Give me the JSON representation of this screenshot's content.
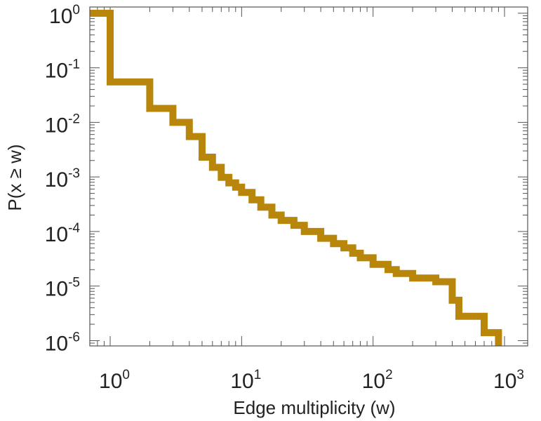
{
  "chart_data": {
    "type": "line",
    "xlabel": "Edge multiplicity (w)",
    "ylabel": "P(x ≥ w)",
    "xscale": "log",
    "yscale": "log",
    "xlim": [
      0.7,
      1500
    ],
    "ylim": [
      8e-07,
      1.3
    ],
    "x_ticks": [
      {
        "base": "10",
        "exp": "0",
        "value": 1
      },
      {
        "base": "10",
        "exp": "1",
        "value": 10
      },
      {
        "base": "10",
        "exp": "2",
        "value": 100
      },
      {
        "base": "10",
        "exp": "3",
        "value": 1000
      }
    ],
    "y_ticks": [
      {
        "base": "10",
        "exp": "0",
        "value": 1
      },
      {
        "base": "10",
        "exp": "-1",
        "value": 0.1
      },
      {
        "base": "10",
        "exp": "-2",
        "value": 0.01
      },
      {
        "base": "10",
        "exp": "-3",
        "value": 0.001
      },
      {
        "base": "10",
        "exp": "-4",
        "value": 0.0001
      },
      {
        "base": "10",
        "exp": "-5",
        "value": 1e-05
      },
      {
        "base": "10",
        "exp": "-6",
        "value": 1e-06
      }
    ],
    "grid": false,
    "series": [
      {
        "step": "post",
        "color": "#b8860b",
        "x": [
          0.7,
          1,
          2,
          3,
          4,
          5,
          6,
          7,
          8,
          9,
          10,
          12,
          14,
          17,
          20,
          25,
          30,
          40,
          50,
          60,
          70,
          80,
          100,
          130,
          150,
          200,
          300,
          400,
          450,
          700,
          900
        ],
        "y": [
          1.0,
          0.055,
          0.018,
          0.01,
          0.0055,
          0.0023,
          0.0015,
          0.00098,
          0.00078,
          0.00065,
          0.00052,
          0.00038,
          0.00028,
          0.0002,
          0.00016,
          0.00013,
          0.0001,
          7.5e-05,
          6e-05,
          5e-05,
          4e-05,
          3.3e-05,
          2.5e-05,
          2e-05,
          1.7e-05,
          1.4e-05,
          1.2e-05,
          5.5e-06,
          2.8e-06,
          1.4e-06,
          9e-07
        ]
      }
    ]
  }
}
